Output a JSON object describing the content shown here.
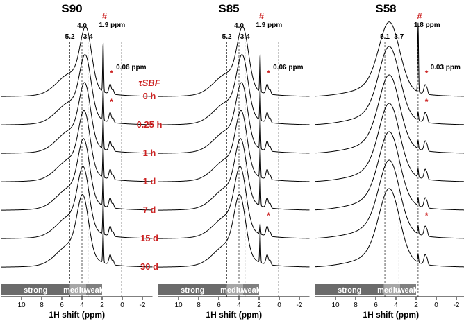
{
  "chart_data": {
    "type": "line",
    "description_free": true,
    "xlabel": "1H shift (ppm)",
    "x_ticks": [
      "10",
      "8",
      "6",
      "4",
      "2",
      "0",
      "-2"
    ],
    "xlim": [
      12,
      -3
    ],
    "time_label": "τSBF",
    "time_points": [
      "0 h",
      "0.25 h",
      "1 h",
      "1 d",
      "7 d",
      "15 d",
      "30 d"
    ],
    "accent_color": "#cc2222",
    "line_color": "#000000",
    "band_colors": {
      "strong": "#6b6b6b",
      "medium": "#a6a6a6",
      "weak": "#7f7f7f"
    },
    "bands": [
      {
        "label": "strong",
        "from": 12,
        "to": 5.2
      },
      {
        "label": "medium",
        "from": 5.2,
        "to": 3.6
      },
      {
        "label": "weak",
        "from": 3.6,
        "to": 2.0
      }
    ],
    "panels": [
      {
        "title": "S90",
        "hash": "#",
        "lines": [
          {
            "ppm": 5.2,
            "label": "5.2"
          },
          {
            "ppm": 4.0,
            "label": "4.0"
          },
          {
            "ppm": 3.4,
            "label": "3.4"
          },
          {
            "ppm": 1.9,
            "label": "1.9 ppm"
          },
          {
            "ppm": 0.06,
            "label": "0.06 ppm"
          }
        ],
        "peaks": {
          "main": 3.6,
          "sharp": 1.9,
          "minor": 1.2
        }
      },
      {
        "title": "S85",
        "hash": "#",
        "lines": [
          {
            "ppm": 5.2,
            "label": "5.2"
          },
          {
            "ppm": 4.0,
            "label": "4.0"
          },
          {
            "ppm": 3.4,
            "label": "3.4"
          },
          {
            "ppm": 1.9,
            "label": "1.9 ppm"
          },
          {
            "ppm": 0.06,
            "label": "0.06 ppm"
          }
        ],
        "peaks": {
          "main": 3.6,
          "sharp": 1.9,
          "minor": 1.2
        }
      },
      {
        "title": "S58",
        "hash": "#",
        "lines": [
          {
            "ppm": 5.1,
            "label": "5.1"
          },
          {
            "ppm": 3.7,
            "label": "3.7"
          },
          {
            "ppm": 1.8,
            "label": "1.8 ppm"
          },
          {
            "ppm": 0.03,
            "label": "0.03 ppm"
          }
        ],
        "peaks": {
          "main": 4.6,
          "sharp": 1.8,
          "minor": 1.1
        }
      }
    ]
  }
}
